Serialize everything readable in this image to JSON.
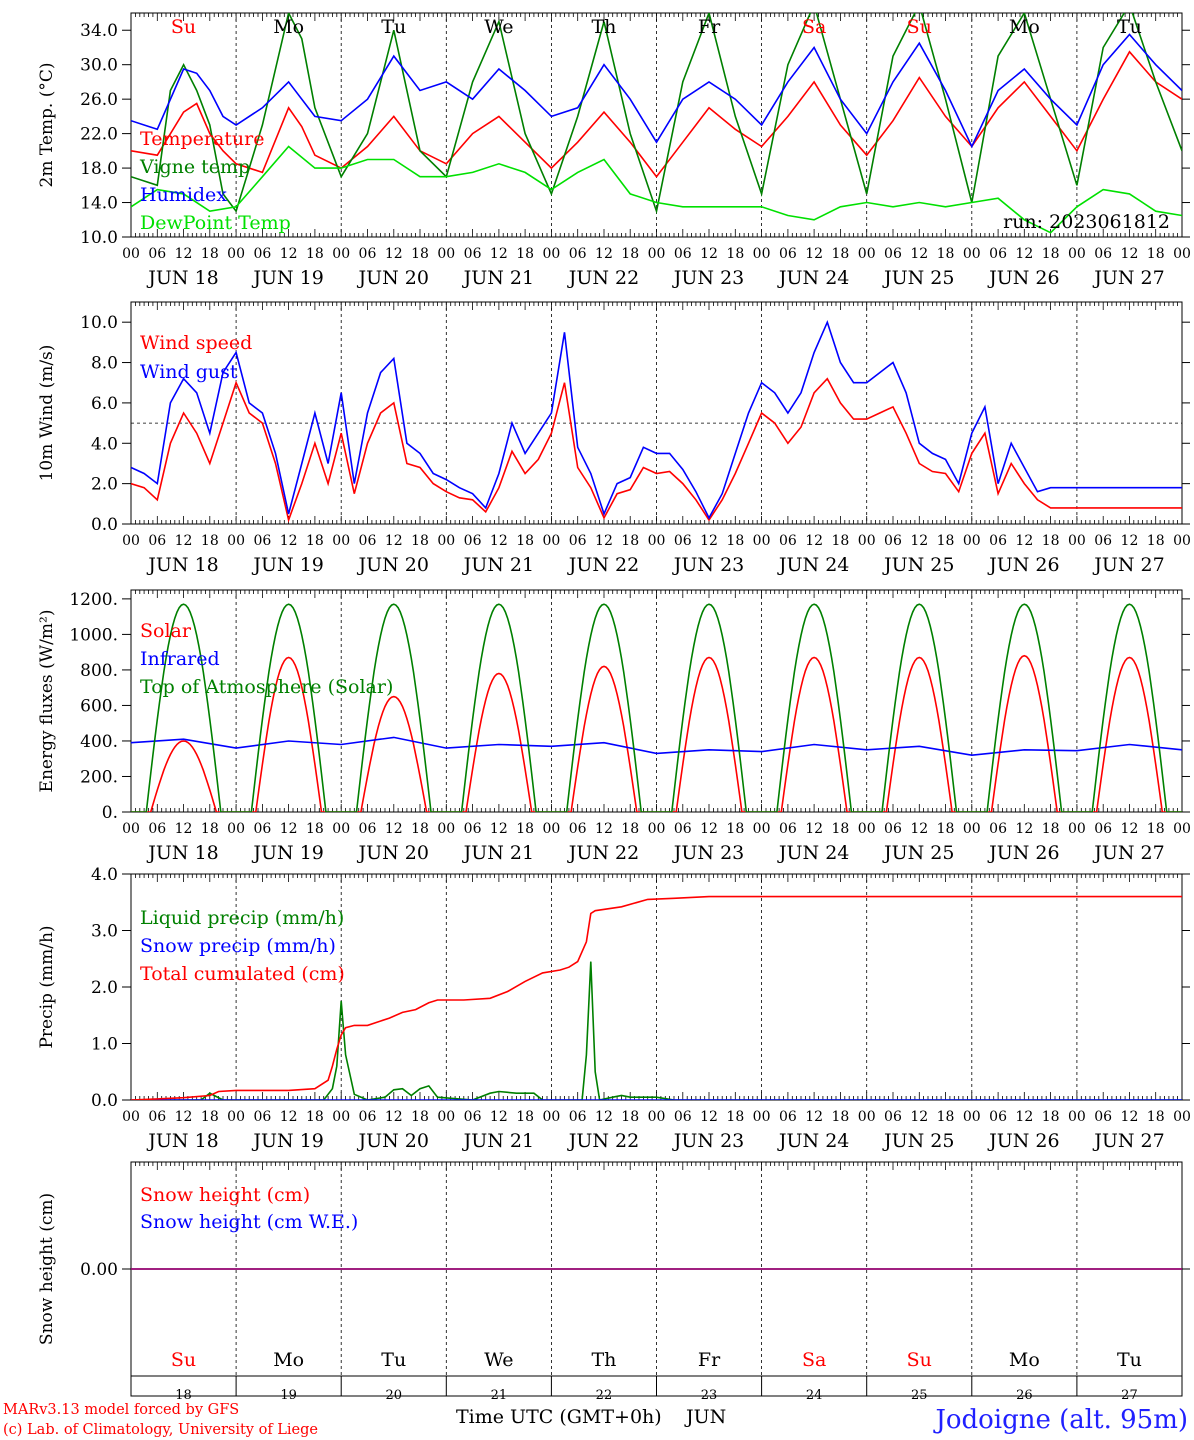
{
  "credits": {
    "model": "MARv3.13 model forced by GFS",
    "lab": "(c) Lab. of Climatology, University of Liege",
    "location": "Jodoigne (alt. 95m)",
    "time_axis": "Time UTC (GMT+0h)",
    "month": "JUN",
    "run": "run: 2023061812"
  },
  "colors": {
    "red": "#ff0000",
    "blue": "#0000ff",
    "green": "#008000",
    "lightgreen": "#00e000",
    "purple": "#800080"
  },
  "days": {
    "dates": [
      "18",
      "19",
      "20",
      "21",
      "22",
      "23",
      "24",
      "25",
      "26",
      "27"
    ],
    "date_labels": [
      "JUN 18",
      "JUN 19",
      "JUN 20",
      "JUN 21",
      "JUN 22",
      "JUN 23",
      "JUN 24",
      "JUN 25",
      "JUN 26",
      "JUN 27"
    ],
    "weekdays": [
      "Su",
      "Mo",
      "Tu",
      "We",
      "Th",
      "Fr",
      "Sa",
      "Su",
      "Mo",
      "Tu"
    ],
    "weekday_colors": [
      "red",
      "black",
      "black",
      "black",
      "black",
      "black",
      "red",
      "red",
      "black",
      "black"
    ],
    "hour_ticks": [
      "00",
      "06",
      "12",
      "18"
    ],
    "end_tick": "00"
  },
  "chart_data": [
    {
      "type": "line",
      "ylabel": "2m Temp. (°C)",
      "yticks": [
        "10.0",
        "14.0",
        "18.0",
        "22.0",
        "26.0",
        "30.0",
        "34.0"
      ],
      "ylim": [
        10,
        36
      ],
      "x_unit": "hours since 2023-06-18 00 UTC",
      "xlim": [
        0,
        240
      ],
      "series": [
        {
          "name": "Temperature",
          "color": "red",
          "x": [
            0,
            6,
            12,
            15,
            18,
            21,
            24,
            30,
            36,
            39,
            42,
            48,
            54,
            60,
            66,
            72,
            78,
            84,
            90,
            96,
            102,
            108,
            114,
            120,
            126,
            132,
            138,
            144,
            150,
            156,
            162,
            168,
            174,
            180,
            186,
            192,
            198,
            204,
            210,
            216,
            222,
            228,
            234,
            240
          ],
          "y": [
            20,
            19.5,
            24.5,
            25.5,
            22,
            20,
            18.5,
            17.5,
            25,
            22.8,
            19.5,
            18,
            20.5,
            24,
            20,
            18.5,
            22,
            24,
            21,
            18,
            21,
            24.5,
            21,
            17,
            21,
            25,
            22.5,
            20.5,
            24,
            28,
            23,
            19.5,
            23.5,
            28.5,
            24,
            20.5,
            25,
            28,
            24,
            20,
            26,
            31.5,
            28,
            26
          ]
        },
        {
          "name": "Vigne temp",
          "color": "green",
          "x": [
            0,
            6,
            9,
            12,
            15,
            18,
            21,
            24,
            30,
            36,
            39,
            42,
            48,
            54,
            60,
            66,
            72,
            78,
            84,
            90,
            96,
            102,
            108,
            114,
            120,
            126,
            132,
            138,
            144,
            150,
            156,
            162,
            168,
            174,
            180,
            186,
            192,
            198,
            204,
            210,
            216,
            222,
            228,
            234,
            240
          ],
          "y": [
            17,
            16,
            27,
            30,
            27,
            23,
            15,
            13,
            23,
            36,
            33,
            25,
            17,
            22,
            34,
            20,
            17,
            28,
            35,
            22,
            15,
            24,
            35,
            22,
            13,
            28,
            36,
            24,
            15,
            30,
            37,
            26,
            15,
            31,
            37,
            26,
            14,
            31,
            36,
            26,
            16,
            32,
            37,
            28,
            20
          ]
        },
        {
          "name": "Humidex",
          "color": "blue",
          "x": [
            0,
            6,
            12,
            15,
            18,
            21,
            24,
            30,
            36,
            42,
            48,
            54,
            60,
            66,
            72,
            78,
            84,
            90,
            96,
            102,
            108,
            114,
            120,
            126,
            132,
            138,
            144,
            150,
            156,
            162,
            168,
            174,
            180,
            186,
            192,
            198,
            204,
            210,
            216,
            222,
            228,
            234,
            240
          ],
          "y": [
            23.5,
            22.5,
            29.5,
            29,
            27,
            24,
            23,
            25,
            28,
            24,
            23.5,
            26,
            31,
            27,
            28,
            26,
            29.5,
            27,
            24,
            25,
            30,
            26,
            21,
            26,
            28,
            26,
            23,
            28,
            32,
            26,
            22,
            28,
            32.5,
            27,
            20.5,
            27,
            29.5,
            26,
            23,
            30,
            33.5,
            30,
            27
          ]
        },
        {
          "name": "DewPoint Temp",
          "color": "lightgreen",
          "x": [
            0,
            6,
            12,
            18,
            24,
            30,
            36,
            42,
            48,
            54,
            60,
            66,
            72,
            78,
            84,
            90,
            96,
            102,
            108,
            114,
            120,
            126,
            132,
            138,
            144,
            150,
            156,
            162,
            168,
            174,
            180,
            186,
            192,
            198,
            204,
            210,
            216,
            222,
            228,
            234,
            240
          ],
          "y": [
            13.5,
            15.5,
            15,
            13,
            13.5,
            17,
            20.5,
            18,
            18,
            19,
            19,
            17,
            17,
            17.5,
            18.5,
            17.5,
            15.5,
            17.5,
            19,
            15,
            14,
            13.5,
            13.5,
            13.5,
            13.5,
            12.5,
            12,
            13.5,
            14,
            13.5,
            14,
            13.5,
            14,
            14.5,
            12,
            10.5,
            13.5,
            15.5,
            15,
            13,
            12.5
          ]
        }
      ]
    },
    {
      "type": "line",
      "ylabel": "10m Wind (m/s)",
      "yticks": [
        "0.0",
        "2.0",
        "4.0",
        "6.0",
        "8.0",
        "10.0"
      ],
      "ylim": [
        0,
        11
      ],
      "reference_line": 5,
      "x_unit": "hours since 2023-06-18 00 UTC",
      "xlim": [
        0,
        240
      ],
      "series": [
        {
          "name": "Wind speed",
          "color": "red",
          "x": [
            0,
            3,
            6,
            9,
            12,
            15,
            18,
            21,
            24,
            27,
            30,
            33,
            36,
            39,
            42,
            45,
            48,
            51,
            54,
            57,
            60,
            63,
            66,
            69,
            72,
            75,
            78,
            81,
            84,
            87,
            90,
            93,
            96,
            99,
            102,
            105,
            108,
            111,
            114,
            117,
            120,
            123,
            126,
            129,
            132,
            135,
            138,
            141,
            144,
            147,
            150,
            153,
            156,
            159,
            162,
            165,
            168,
            171,
            174,
            177,
            180,
            183,
            186,
            189,
            192,
            195,
            198,
            201,
            204,
            207,
            210,
            213,
            216,
            219,
            222,
            225,
            228,
            231,
            234,
            237,
            240
          ],
          "y": [
            2,
            1.8,
            1.2,
            4,
            5.5,
            4.5,
            3,
            5,
            7,
            5.5,
            5,
            3,
            0.2,
            2,
            4,
            2,
            4.5,
            1.5,
            4,
            5.5,
            6,
            3,
            2.8,
            2,
            1.6,
            1.3,
            1.2,
            0.6,
            1.8,
            3.6,
            2.5,
            3.2,
            4.5,
            7,
            2.8,
            1.8,
            0.3,
            1.5,
            1.7,
            2.8,
            2.5,
            2.6,
            2,
            1.2,
            0.2,
            1.2,
            2.5,
            4,
            5.5,
            5,
            4,
            4.8,
            6.5,
            7.2,
            6,
            5.2,
            5.2,
            5.5,
            5.8,
            4.5,
            3,
            2.6,
            2.5,
            1.6,
            3.5,
            4.5,
            1.5,
            3,
            2,
            1.2,
            0.8,
            0.8,
            0.8,
            0.8,
            0.8,
            0.8,
            0.8,
            0.8,
            0.8,
            0.8,
            0.8
          ]
        },
        {
          "name": "Wind gust",
          "color": "blue",
          "x": [
            0,
            3,
            6,
            9,
            12,
            15,
            18,
            21,
            24,
            27,
            30,
            33,
            36,
            39,
            42,
            45,
            48,
            51,
            54,
            57,
            60,
            63,
            66,
            69,
            72,
            75,
            78,
            81,
            84,
            87,
            90,
            93,
            96,
            99,
            102,
            105,
            108,
            111,
            114,
            117,
            120,
            123,
            126,
            129,
            132,
            135,
            138,
            141,
            144,
            147,
            150,
            153,
            156,
            159,
            162,
            165,
            168,
            171,
            174,
            177,
            180,
            183,
            186,
            189,
            192,
            195,
            198,
            201,
            204,
            207,
            210,
            213,
            216,
            219,
            222,
            225,
            228,
            231,
            234,
            237,
            240
          ],
          "y": [
            2.8,
            2.5,
            2,
            6,
            7.2,
            6.5,
            4.5,
            7.5,
            8.5,
            6,
            5.5,
            3.5,
            0.5,
            3,
            5.5,
            3,
            6.5,
            2,
            5.5,
            7.5,
            8.2,
            4,
            3.5,
            2.5,
            2.2,
            1.8,
            1.5,
            0.8,
            2.5,
            5,
            3.5,
            4.5,
            5.5,
            9.5,
            3.8,
            2.5,
            0.5,
            2,
            2.3,
            3.8,
            3.5,
            3.5,
            2.7,
            1.6,
            0.3,
            1.5,
            3.5,
            5.5,
            7,
            6.5,
            5.5,
            6.5,
            8.5,
            10,
            8,
            7,
            7,
            7.5,
            8,
            6.5,
            4,
            3.5,
            3.2,
            2,
            4.5,
            5.8,
            2,
            4,
            2.8,
            1.6,
            1.8,
            1.8,
            1.8,
            1.8,
            1.8,
            1.8,
            1.8,
            1.8,
            1.8,
            1.8,
            1.8
          ]
        }
      ]
    },
    {
      "type": "line",
      "ylabel": "Energy fluxes (W/m²)",
      "yticks": [
        "0.",
        "200.",
        "400.",
        "600.",
        "800.",
        "1000.",
        "1200."
      ],
      "ylim": [
        0,
        1250
      ],
      "x_unit": "hours since 2023-06-18 00 UTC",
      "xlim": [
        0,
        240
      ],
      "series": [
        {
          "name": "Solar",
          "color": "red",
          "daily_peak": [
            400,
            870,
            650,
            780,
            820,
            870,
            870,
            870,
            880,
            870
          ]
        },
        {
          "name": "Infrared",
          "color": "blue",
          "x": [
            0,
            12,
            24,
            36,
            48,
            60,
            72,
            84,
            96,
            108,
            120,
            132,
            144,
            156,
            168,
            180,
            192,
            204,
            216,
            228,
            240
          ],
          "y": [
            390,
            410,
            360,
            400,
            380,
            420,
            360,
            380,
            370,
            390,
            330,
            350,
            340,
            380,
            350,
            370,
            320,
            350,
            345,
            380,
            350
          ]
        },
        {
          "name": "Top of Atmosphere (Solar)",
          "color": "green",
          "daily_peak": [
            1170,
            1170,
            1170,
            1170,
            1170,
            1170,
            1170,
            1170,
            1170,
            1170
          ]
        }
      ]
    },
    {
      "type": "line",
      "ylabel": "Precip (mm/h)",
      "yticks": [
        "0.0",
        "1.0",
        "2.0",
        "3.0",
        "4.0"
      ],
      "ylim": [
        0,
        4
      ],
      "x_unit": "hours since 2023-06-18 00 UTC",
      "xlim": [
        0,
        240
      ],
      "series": [
        {
          "name": "Liquid precip (mm/h)",
          "color": "green",
          "x": [
            0,
            16,
            18,
            19,
            21,
            44,
            46,
            47,
            48,
            49,
            51,
            54,
            58,
            60,
            62,
            64,
            66,
            68,
            70,
            78,
            82,
            84,
            88,
            92,
            94,
            103,
            104,
            105,
            106,
            107,
            110,
            112,
            114,
            118,
            120,
            124,
            240
          ],
          "y": [
            0,
            0,
            0.12,
            0.08,
            0,
            0,
            0.2,
            0.6,
            1.75,
            0.8,
            0.1,
            0,
            0.05,
            0.18,
            0.2,
            0.08,
            0.2,
            0.25,
            0.05,
            0,
            0.12,
            0.15,
            0.12,
            0.12,
            0,
            0,
            0.8,
            2.45,
            0.5,
            0,
            0.05,
            0.08,
            0.05,
            0.05,
            0.05,
            0,
            0
          ]
        },
        {
          "name": "Snow precip (mm/h)",
          "color": "blue",
          "x": [
            0,
            240
          ],
          "y": [
            0,
            0
          ]
        },
        {
          "name": "Total cumulated (cm)",
          "color": "red",
          "x": [
            0,
            6,
            12,
            18,
            20,
            24,
            36,
            42,
            45,
            46,
            47,
            48,
            49,
            51,
            53,
            54,
            59,
            62,
            65,
            68,
            70,
            73,
            76,
            82,
            86,
            90,
            94,
            98,
            100,
            102,
            104,
            105,
            106,
            112,
            118,
            124,
            132,
            240
          ],
          "y": [
            0,
            0.02,
            0.04,
            0.08,
            0.15,
            0.17,
            0.17,
            0.2,
            0.35,
            0.6,
            0.9,
            1.15,
            1.28,
            1.32,
            1.32,
            1.32,
            1.45,
            1.55,
            1.6,
            1.72,
            1.77,
            1.77,
            1.77,
            1.8,
            1.92,
            2.1,
            2.25,
            2.3,
            2.35,
            2.45,
            2.8,
            3.3,
            3.35,
            3.42,
            3.55,
            3.57,
            3.6,
            3.6
          ]
        }
      ]
    },
    {
      "type": "line",
      "ylabel": "Snow height (cm)",
      "yticks": [
        "0.00"
      ],
      "ylim": [
        -1,
        1
      ],
      "x_unit": "hours since 2023-06-18 00 UTC",
      "xlim": [
        0,
        240
      ],
      "series": [
        {
          "name": "Snow height (cm)",
          "color": "red",
          "x": [
            0,
            240
          ],
          "y": [
            0,
            0
          ]
        },
        {
          "name": "Snow height (cm W.E.)",
          "color": "blue",
          "x": [
            0,
            240
          ],
          "y": [
            0,
            0
          ]
        }
      ]
    }
  ]
}
